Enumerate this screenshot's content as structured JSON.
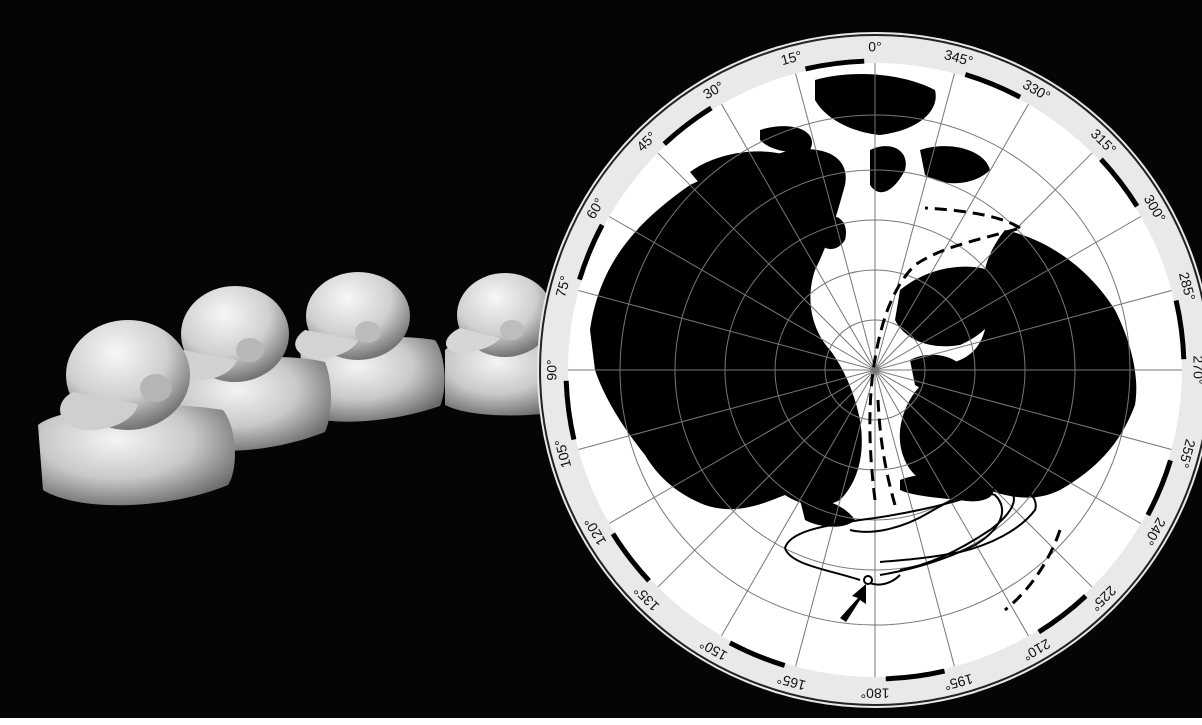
{
  "colors": {
    "background": "#050505",
    "land": "#000000",
    "ocean": "#ffffff",
    "frame": "#e9e9e9",
    "duck_light": "#d8d8d8",
    "duck_shadow": "#6a6a6a"
  },
  "scene": {
    "ducks": {
      "count": 4
    },
    "map": {
      "projection": "polar",
      "pole": "north"
    }
  },
  "map": {
    "longitude_labels": [
      "0°",
      "345°",
      "330°",
      "315°",
      "300°",
      "285°",
      "270°",
      "255°",
      "240°",
      "225°",
      "210°",
      "195°",
      "180°",
      "165°",
      "150°",
      "135°",
      "120°",
      "105°",
      "90°",
      "75°",
      "60°",
      "45°",
      "30°",
      "15°"
    ],
    "drift_paths": [
      "solid-loops-north-pacific",
      "dashed-arctic-crossing",
      "dashed-north-atlantic"
    ],
    "start_marker": "arrow-icon"
  }
}
